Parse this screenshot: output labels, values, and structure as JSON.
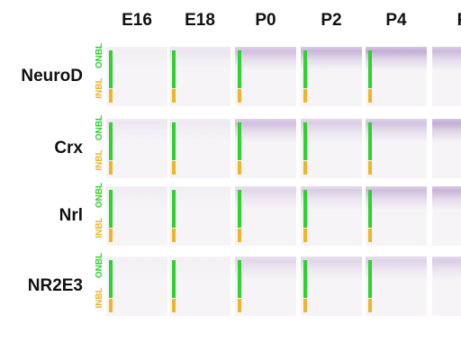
{
  "columns": [
    "E16",
    "E18",
    "P0",
    "P2",
    "P4",
    "P"
  ],
  "rows": [
    {
      "label": "NeuroD",
      "intensities": [
        0.03,
        0.12,
        0.4,
        0.48,
        0.55,
        0.45
      ]
    },
    {
      "label": "Crx",
      "intensities": [
        0.1,
        0.08,
        0.4,
        0.3,
        0.38,
        0.55
      ]
    },
    {
      "label": "Nrl",
      "intensities": [
        0.06,
        0.04,
        0.22,
        0.3,
        0.42,
        0.5
      ]
    },
    {
      "label": "NR2E3",
      "intensities": [
        0.02,
        0.02,
        0.22,
        0.24,
        0.25,
        0.3
      ]
    }
  ],
  "layer_labels": {
    "onbl": "ONBL",
    "inbl": "INBL"
  },
  "colors": {
    "onbl_bar": "#2fd22f",
    "inbl_bar": "#efb52a",
    "stain": "#8a5bb0",
    "panel_background": "#f6f4f7"
  }
}
